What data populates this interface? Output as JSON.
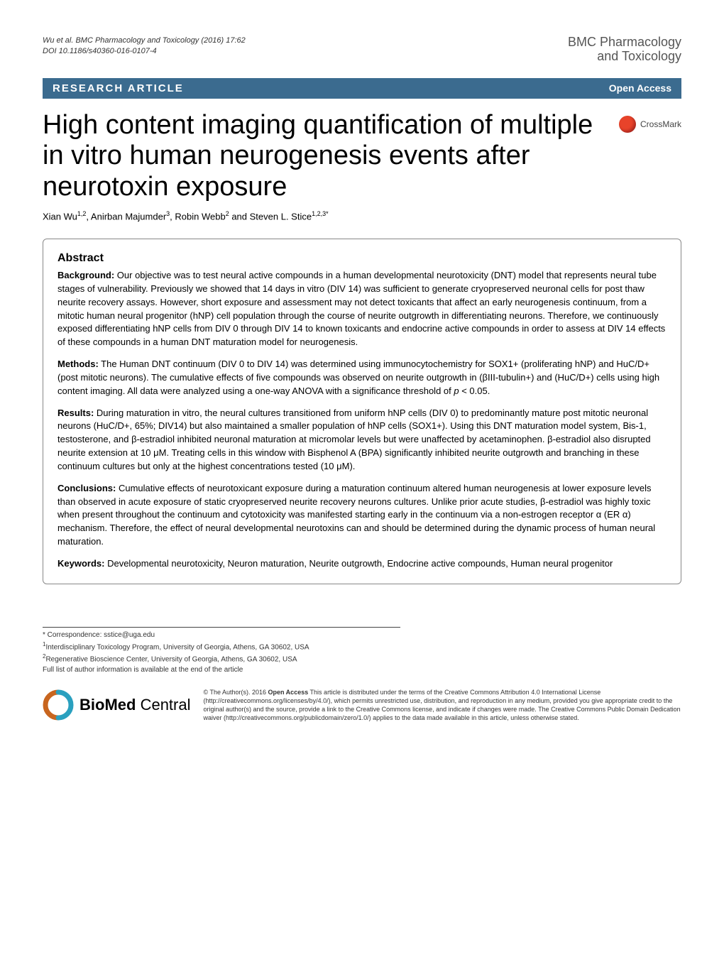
{
  "header": {
    "citation": "Wu et al. BMC Pharmacology and Toxicology  (2016) 17:62",
    "doi": "DOI 10.1186/s40360-016-0107-4",
    "journal_line1": "BMC Pharmacology",
    "journal_line2": "and Toxicology"
  },
  "article_type_bar": {
    "type_label": "RESEARCH ARTICLE",
    "access_label": "Open Access"
  },
  "title": "High content imaging quantification of multiple in vitro human neurogenesis events after neurotoxin exposure",
  "crossmark_label": "CrossMark",
  "authors_html": "Xian Wu<sup>1,2</sup>, Anirban Majumder<sup>3</sup>, Robin Webb<sup>2</sup> and Steven L. Stice<sup>1,2,3*</sup>",
  "abstract": {
    "heading": "Abstract",
    "sections": [
      {
        "label": "Background:",
        "text": " Our objective was to test neural active compounds in a human developmental neurotoxicity (DNT) model that represents neural tube stages of vulnerability. Previously we showed that 14 days in vitro (DIV 14) was sufficient to generate cryopreserved neuronal cells for post thaw neurite recovery assays. However, short exposure and assessment may not detect toxicants that affect an early neurogenesis continuum, from a mitotic human neural progenitor (hNP) cell population through the course of neurite outgrowth in differentiating neurons. Therefore, we continuously exposed differentiating hNP cells from DIV 0 through DIV 14 to known toxicants and endocrine active compounds in order to assess at DIV 14 effects of these compounds in a human DNT maturation model for neurogenesis."
      },
      {
        "label": "Methods:",
        "text": " The Human DNT continuum (DIV 0 to DIV 14) was determined using immunocytochemistry for SOX1+ (proliferating hNP) and HuC/D+ (post mitotic neurons). The cumulative effects of five compounds was observed on neurite outgrowth in (βIII-tubulin+) and (HuC/D+) cells using high content imaging. All data were analyzed using a one-way ANOVA with a significance threshold of p < 0.05."
      },
      {
        "label": "Results:",
        "text": " During maturation in vitro, the neural cultures transitioned from uniform hNP cells (DIV 0) to predominantly mature post mitotic neuronal neurons (HuC/D+, 65%; DIV14) but also maintained a smaller population of hNP cells (SOX1+). Using this DNT maturation model system, Bis-1, testosterone, and β-estradiol inhibited neuronal maturation at micromolar levels but were unaffected by acetaminophen. β-estradiol also disrupted neurite extension at 10 μM. Treating cells in this window with Bisphenol A (BPA) significantly inhibited neurite outgrowth and branching in these continuum cultures but only at the highest concentrations tested (10 μM)."
      },
      {
        "label": "Conclusions:",
        "text": " Cumulative effects of neurotoxicant exposure during a maturation continuum altered human neurogenesis at lower exposure levels than observed in acute exposure of static cryopreserved neurite recovery neurons cultures. Unlike prior acute studies, β-estradiol was highly toxic when present throughout the continuum and cytotoxicity was manifested starting early in the continuum via a non-estrogen receptor α (ER α) mechanism. Therefore, the effect of neural developmental neurotoxins can and should be determined during the dynamic process of human neural maturation."
      },
      {
        "label": "Keywords:",
        "text": " Developmental neurotoxicity, Neuron maturation, Neurite outgrowth, Endocrine active compounds, Human neural progenitor"
      }
    ]
  },
  "footnotes": {
    "correspondence": "* Correspondence: sstice@uga.edu",
    "aff1": "Interdisciplinary Toxicology Program, University of Georgia, Athens, GA 30602, USA",
    "aff2": "Regenerative Bioscience Center, University of Georgia, Athens, GA 30602, USA",
    "full_list": "Full list of author information is available at the end of the article"
  },
  "bmc": {
    "brand_bold": "BioMed",
    "brand_light": " Central"
  },
  "license": "© The Author(s). 2016 Open Access This article is distributed under the terms of the Creative Commons Attribution 4.0 International License (http://creativecommons.org/licenses/by/4.0/), which permits unrestricted use, distribution, and reproduction in any medium, provided you give appropriate credit to the original author(s) and the source, provide a link to the Creative Commons license, and indicate if changes were made. The Creative Commons Public Domain Dedication waiver (http://creativecommons.org/publicdomain/zero/1.0/) applies to the data made available in this article, unless otherwise stated.",
  "colors": {
    "bar_bg": "#3b6b8f",
    "bar_fg": "#ffffff",
    "crossmark_dot": "#e8432a",
    "bmc_arc": "#c8651e",
    "text": "#000000",
    "muted": "#555555"
  },
  "typography": {
    "title_size_pt": 29,
    "body_size_pt": 10,
    "abstract_heading_size_pt": 12,
    "header_size_pt": 8
  }
}
